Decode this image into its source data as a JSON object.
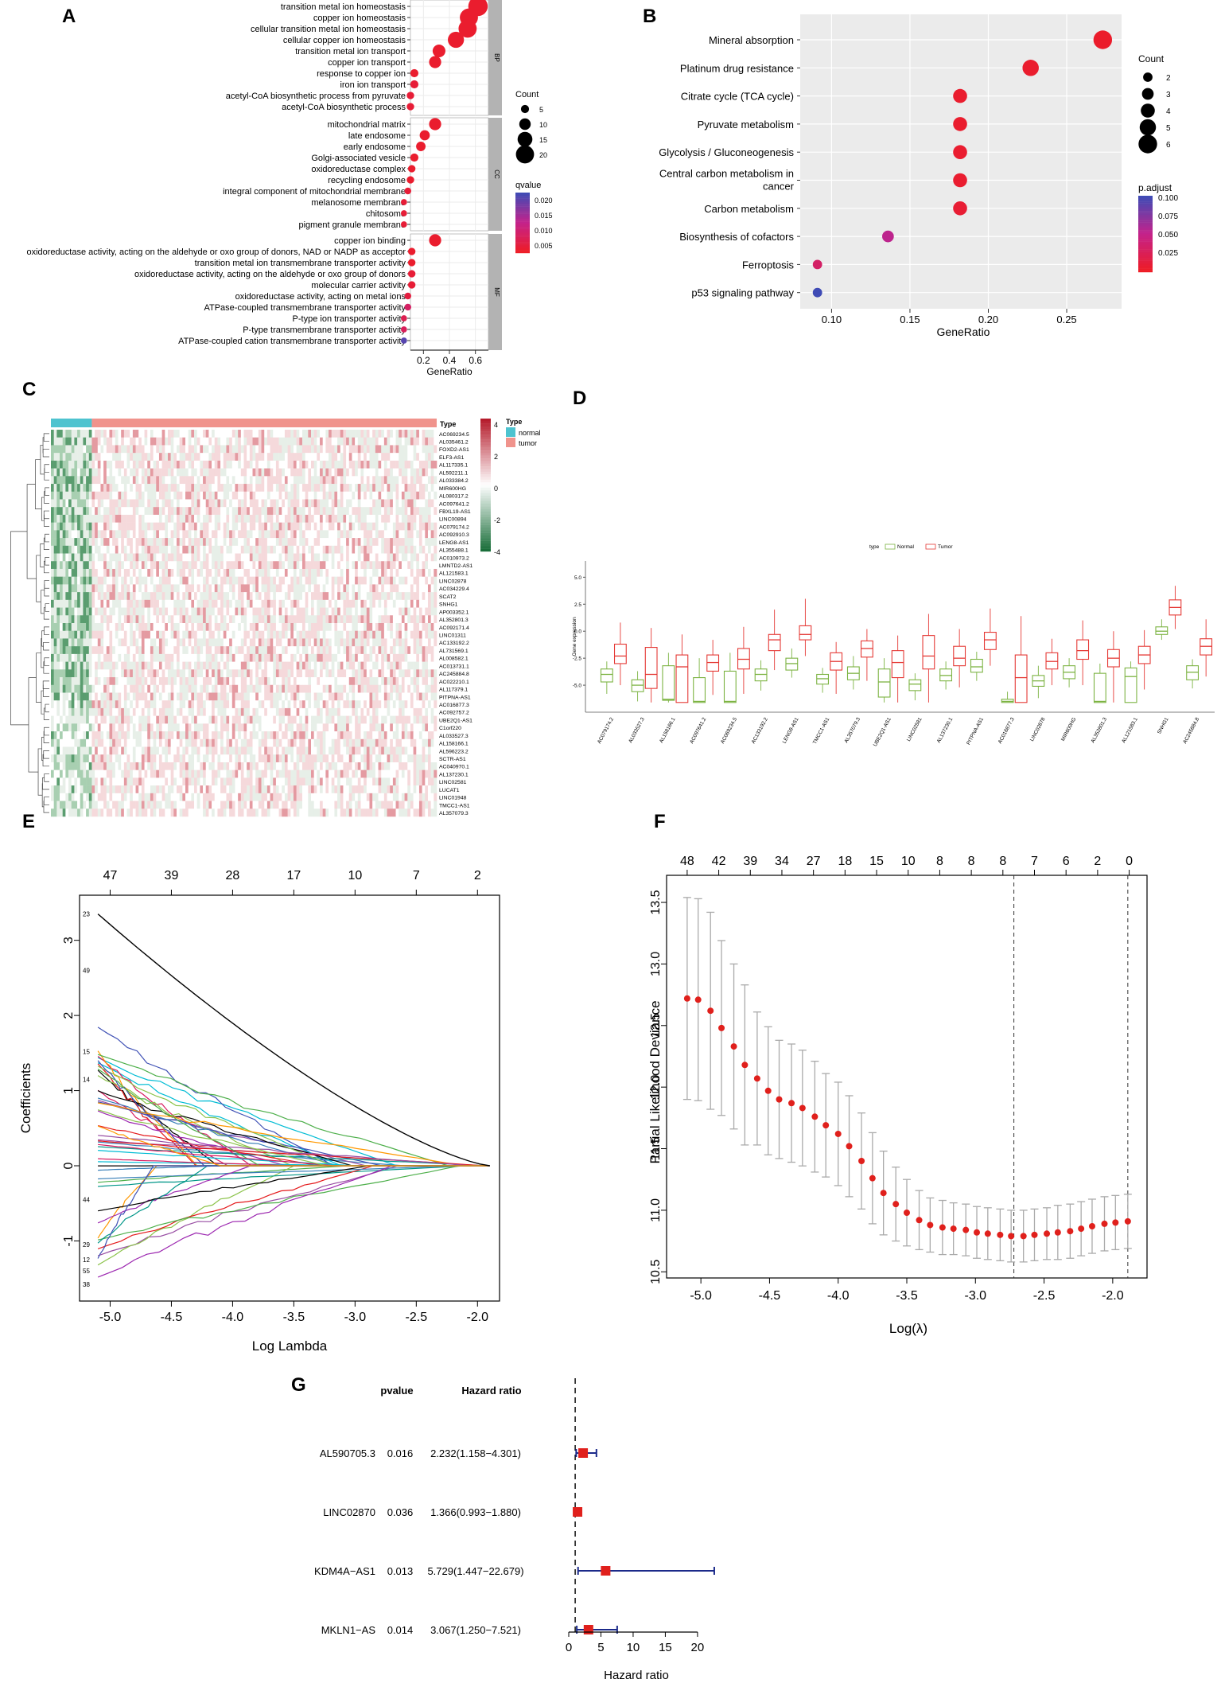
{
  "figure": {
    "panel_letters": [
      "A",
      "B",
      "C",
      "D",
      "E",
      "F",
      "G"
    ]
  },
  "chart_data": [
    {
      "id": "A",
      "type": "scatter",
      "title": "",
      "xlabel": "GeneRatio",
      "xticks": [
        "0.2",
        "0.4",
        "0.6"
      ],
      "xlim": [
        0.1,
        0.7
      ],
      "size_legend_title": "Count",
      "size_legend": [
        "5",
        "10",
        "15",
        "20"
      ],
      "color_legend_title": "qvalue",
      "color_legend": [
        "0.020",
        "0.015",
        "0.010",
        "0.005"
      ],
      "color_range": [
        0.001,
        0.024
      ],
      "groups": [
        {
          "name": "BP",
          "terms": [
            {
              "label": "transition metal ion homeostasis",
              "x": 0.62,
              "count": 22,
              "q": 0.002
            },
            {
              "label": "copper ion homeostasis",
              "x": 0.55,
              "count": 20,
              "q": 0.002
            },
            {
              "label": "cellular transition metal ion homeostasis",
              "x": 0.54,
              "count": 20,
              "q": 0.002
            },
            {
              "label": "cellular copper ion homeostasis",
              "x": 0.45,
              "count": 17,
              "q": 0.002
            },
            {
              "label": "transition metal ion transport",
              "x": 0.32,
              "count": 12,
              "q": 0.002
            },
            {
              "label": "copper ion transport",
              "x": 0.29,
              "count": 11,
              "q": 0.002
            },
            {
              "label": "response to copper ion",
              "x": 0.13,
              "count": 5,
              "q": 0.002
            },
            {
              "label": "iron ion transport",
              "x": 0.13,
              "count": 5,
              "q": 0.003
            },
            {
              "label": "acetyl-CoA biosynthetic process from pyruvate",
              "x": 0.1,
              "count": 4,
              "q": 0.003
            },
            {
              "label": "acetyl-CoA biosynthetic process",
              "x": 0.1,
              "count": 4,
              "q": 0.003
            }
          ]
        },
        {
          "name": "CC",
          "terms": [
            {
              "label": "mitochondrial matrix",
              "x": 0.29,
              "count": 11,
              "q": 0.002
            },
            {
              "label": "late endosome",
              "x": 0.21,
              "count": 8,
              "q": 0.002
            },
            {
              "label": "early endosome",
              "x": 0.18,
              "count": 7,
              "q": 0.002
            },
            {
              "label": "Golgi-associated vesicle",
              "x": 0.13,
              "count": 5,
              "q": 0.002
            },
            {
              "label": "oxidoreductase complex",
              "x": 0.11,
              "count": 4,
              "q": 0.002
            },
            {
              "label": "recycling endosome",
              "x": 0.1,
              "count": 4,
              "q": 0.002
            },
            {
              "label": "integral component of mitochondrial membrane",
              "x": 0.08,
              "count": 3,
              "q": 0.003
            },
            {
              "label": "melanosome membrane",
              "x": 0.05,
              "count": 2,
              "q": 0.003
            },
            {
              "label": "chitosome",
              "x": 0.05,
              "count": 2,
              "q": 0.003
            },
            {
              "label": "pigment granule membrane",
              "x": 0.05,
              "count": 2,
              "q": 0.003
            }
          ]
        },
        {
          "name": "MF",
          "terms": [
            {
              "label": "copper ion binding",
              "x": 0.29,
              "count": 11,
              "q": 0.002
            },
            {
              "label": "oxidoreductase activity, acting on the aldehyde or oxo group of donors, NAD or NADP as acceptor",
              "x": 0.11,
              "count": 4,
              "q": 0.002
            },
            {
              "label": "transition metal ion transmembrane transporter activity",
              "x": 0.11,
              "count": 4,
              "q": 0.002
            },
            {
              "label": "oxidoreductase activity, acting on the aldehyde or oxo group of donors",
              "x": 0.11,
              "count": 4,
              "q": 0.003
            },
            {
              "label": "molecular carrier activity",
              "x": 0.11,
              "count": 4,
              "q": 0.003
            },
            {
              "label": "oxidoreductase activity, acting on metal ions",
              "x": 0.08,
              "count": 3,
              "q": 0.004
            },
            {
              "label": "ATPase-coupled transmembrane transporter activity",
              "x": 0.08,
              "count": 3,
              "q": 0.008
            },
            {
              "label": "P-type ion transporter activity",
              "x": 0.05,
              "count": 2,
              "q": 0.006
            },
            {
              "label": "P-type transmembrane transporter activity",
              "x": 0.05,
              "count": 2,
              "q": 0.007
            },
            {
              "label": "ATPase-coupled cation transmembrane transporter activity",
              "x": 0.05,
              "count": 2,
              "q": 0.022
            }
          ]
        }
      ]
    },
    {
      "id": "B",
      "type": "scatter",
      "xlabel": "GeneRatio",
      "xticks": [
        "0.10",
        "0.15",
        "0.20",
        "0.25"
      ],
      "xlim": [
        0.08,
        0.285
      ],
      "size_legend_title": "Count",
      "size_legend": [
        "2",
        "3",
        "4",
        "5",
        "6"
      ],
      "color_legend_title": "p.adjust",
      "color_legend": [
        "0.100",
        "0.075",
        "0.050",
        "0.025"
      ],
      "color_range": [
        0.005,
        0.1
      ],
      "terms": [
        {
          "label": "Mineral absorption",
          "x": 0.273,
          "count": 6,
          "padj": 0.008
        },
        {
          "label": "Platinum drug resistance",
          "x": 0.227,
          "count": 5,
          "padj": 0.009
        },
        {
          "label": "Citrate cycle (TCA cycle)",
          "x": 0.182,
          "count": 4,
          "padj": 0.009
        },
        {
          "label": "Pyruvate metabolism",
          "x": 0.182,
          "count": 4,
          "padj": 0.009
        },
        {
          "label": "Glycolysis / Gluconeogenesis",
          "x": 0.182,
          "count": 4,
          "padj": 0.01
        },
        {
          "label": "Central carbon metabolism in cancer",
          "label_lines": [
            "Central carbon metabolism in",
            "cancer"
          ],
          "x": 0.182,
          "count": 4,
          "padj": 0.01
        },
        {
          "label": "Carbon metabolism",
          "x": 0.182,
          "count": 4,
          "padj": 0.012
        },
        {
          "label": "Biosynthesis of cofactors",
          "x": 0.136,
          "count": 3,
          "padj": 0.055
        },
        {
          "label": "Ferroptosis",
          "x": 0.091,
          "count": 2,
          "padj": 0.035
        },
        {
          "label": "p53 signaling pathway",
          "x": 0.091,
          "count": 2,
          "padj": 0.1
        }
      ]
    },
    {
      "id": "C",
      "type": "heatmap",
      "annotation_title": "Type",
      "annotation_legend_title": "Type",
      "annotation_groups": [
        {
          "name": "normal",
          "color": "#4ec3cf",
          "n_samples": 14
        },
        {
          "name": "tumor",
          "color": "#f0938c",
          "n_samples": 118
        }
      ],
      "color_scale_ticks": [
        "4",
        "2",
        "0",
        "-2",
        "-4"
      ],
      "scale_colors": [
        "#1a6e3a",
        "#ffffff",
        "#b51c2c"
      ],
      "genes": [
        "AC069234.5",
        "AL035461.2",
        "FOXD2-AS1",
        "ELF3-AS1",
        "AL117335.1",
        "AL592211.1",
        "AL033384.2",
        "MIR600HG",
        "AL080317.2",
        "AC097641.2",
        "FBXL19-AS1",
        "LINC00894",
        "AC079174.2",
        "AC092910.3",
        "LENG8-AS1",
        "AL355488.1",
        "AC010973.2",
        "LMNTD2-AS1",
        "AL121583.1",
        "LINC02878",
        "AC034229.4",
        "SCAT2",
        "SNHG1",
        "AP003352.1",
        "AL352801.3",
        "AC092171.4",
        "LINC01311",
        "AC133192.2",
        "AL731569.1",
        "AL008582.1",
        "AC013731.1",
        "AC245884.8",
        "AC022210.1",
        "AL117379.1",
        "PITPNA-AS1",
        "AC016877.3",
        "AC092757.2",
        "UBE2Q1-AS1",
        "C1orf220",
        "AL033527.3",
        "AL158166.1",
        "AL596223.2",
        "SCTR-AS1",
        "AC040970.1",
        "AL137230.1",
        "LINC02581",
        "LUCAT1",
        "LINC01948",
        "TMCC1-AS1",
        "AL357079.3"
      ]
    },
    {
      "id": "D",
      "type": "box",
      "legend_title": "type",
      "legend": [
        {
          "name": "Normal",
          "color": "#7cb342"
        },
        {
          "name": "Tumor",
          "color": "#e53935"
        }
      ],
      "ylabel": "Gene expression",
      "yticks": [
        "5.0",
        "2.5",
        "0.0",
        "-2.5",
        "-5.0"
      ],
      "ylim": [
        -7.5,
        6.5
      ],
      "categories": [
        "AC079174.2",
        "AL033527.3",
        "AL158166.1",
        "AC097641.2",
        "AC069234.5",
        "AC133192.2",
        "LENG8-AS1",
        "TMCC1-AS1",
        "AL357079.3",
        "UBE2Q1-AS1",
        "LINC02581",
        "AL137230.1",
        "PITPNA-AS1",
        "AC016877.3",
        "LINC02878",
        "MIR600HG",
        "AL352801.3",
        "AL121583.1",
        "SNHG1",
        "AC245884.8"
      ],
      "series": [
        {
          "name": "Normal",
          "q1": [
            -4.7,
            -5.6,
            -6.4,
            -6.6,
            -6.6,
            -4.6,
            -3.6,
            -4.9,
            -4.5,
            -6.1,
            -5.5,
            -4.6,
            -3.8,
            -6.6,
            -5.1,
            -4.4,
            -6.6,
            -6.6,
            -0.3,
            -4.5
          ],
          "med": [
            -4.0,
            -5.0,
            -6.3,
            -6.5,
            -6.5,
            -4.0,
            -3.0,
            -4.4,
            -3.9,
            -4.7,
            -4.9,
            -4.1,
            -3.3,
            -6.5,
            -4.6,
            -3.8,
            -6.5,
            -4.2,
            0.0,
            -3.8
          ],
          "q3": [
            -3.5,
            -4.5,
            -3.2,
            -4.3,
            -3.7,
            -3.5,
            -2.5,
            -4.0,
            -3.3,
            -3.5,
            -4.5,
            -3.5,
            -2.6,
            -6.3,
            -4.1,
            -3.2,
            -3.9,
            -3.4,
            0.4,
            -3.2
          ],
          "lo": [
            -5.8,
            -6.5,
            -6.6,
            -6.6,
            -6.6,
            -5.5,
            -4.3,
            -5.7,
            -5.4,
            -6.6,
            -6.4,
            -5.4,
            -4.6,
            -6.6,
            -6.2,
            -5.2,
            -6.6,
            -6.6,
            -0.8,
            -5.3
          ],
          "hi": [
            -2.8,
            -3.7,
            -2.0,
            -2.5,
            -2.0,
            -2.7,
            -1.6,
            -3.4,
            -2.3,
            -2.5,
            -3.9,
            -2.8,
            -1.9,
            -5.6,
            -3.2,
            -2.5,
            -3.0,
            -2.8,
            1.1,
            -2.6
          ]
        },
        {
          "name": "Tumor",
          "q1": [
            -3.0,
            -5.3,
            -6.6,
            -3.7,
            -3.5,
            -1.8,
            -0.8,
            -3.6,
            -2.4,
            -4.3,
            -3.5,
            -3.2,
            -1.7,
            -6.6,
            -3.5,
            -2.6,
            -3.3,
            -3.0,
            1.5,
            -2.2
          ],
          "med": [
            -2.3,
            -4.0,
            -3.3,
            -2.9,
            -2.6,
            -0.8,
            -0.3,
            -2.8,
            -1.6,
            -2.9,
            -2.3,
            -2.5,
            -0.8,
            -4.3,
            -2.8,
            -1.8,
            -2.5,
            -2.2,
            2.2,
            -1.4
          ],
          "q3": [
            -1.2,
            -1.5,
            -2.2,
            -2.2,
            -1.6,
            -0.3,
            0.5,
            -2.0,
            -0.9,
            -1.8,
            -0.4,
            -1.4,
            -0.1,
            -2.2,
            -2.0,
            -0.8,
            -1.7,
            -1.4,
            2.9,
            -0.7
          ],
          "lo": [
            -5.0,
            -6.6,
            -6.6,
            -5.9,
            -5.8,
            -3.6,
            -2.3,
            -5.8,
            -4.6,
            -6.6,
            -6.6,
            -5.2,
            -3.2,
            -6.6,
            -5.0,
            -5.0,
            -6.6,
            -5.4,
            0.2,
            -4.2
          ],
          "hi": [
            0.8,
            0.3,
            -0.3,
            -0.8,
            0.4,
            2.0,
            3.0,
            -1.0,
            0.2,
            -0.4,
            1.6,
            0.2,
            2.1,
            1.4,
            -0.7,
            1.0,
            0.0,
            0.1,
            4.2,
            1.1
          ]
        }
      ]
    },
    {
      "id": "E",
      "type": "line",
      "xlabel": "Log Lambda",
      "ylabel": "Coefficients",
      "xticks": [
        "-5.0",
        "-4.5",
        "-4.0",
        "-3.5",
        "-3.0",
        "-2.5",
        "-2.0"
      ],
      "yticks": [
        "3",
        "2",
        "1",
        "0",
        "-1"
      ],
      "top_ticks": [
        "47",
        "39",
        "28",
        "17",
        "10",
        "7",
        "2"
      ],
      "xlim": [
        -5.25,
        -1.82
      ],
      "ylim": [
        -1.8,
        3.6
      ],
      "n_paths": 46,
      "path_labels": [
        "23",
        "49",
        "15",
        "14",
        "44",
        "29",
        "12",
        "55",
        "38"
      ],
      "highlight": {
        "start": 3.35,
        "end_lambda": -1.9
      }
    },
    {
      "id": "F",
      "type": "scatter",
      "xlabel": "Log(λ)",
      "ylabel": "Partial Likelihood Deviance",
      "xticks": [
        "-5.0",
        "-4.5",
        "-4.0",
        "-3.5",
        "-3.0",
        "-2.5",
        "-2.0"
      ],
      "yticks": [
        "13.5",
        "13.0",
        "12.5",
        "12.0",
        "11.5",
        "11.0",
        "10.5"
      ],
      "top_ticks": [
        "48",
        "42",
        "39",
        "34",
        "27",
        "18",
        "15",
        "10",
        "8",
        "8",
        "8",
        "7",
        "6",
        "2",
        "0"
      ],
      "xlim": [
        -5.25,
        -1.75
      ],
      "ylim": [
        10.45,
        13.72
      ],
      "x": [
        -5.1,
        -5.02,
        -4.93,
        -4.85,
        -4.76,
        -4.68,
        -4.59,
        -4.51,
        -4.43,
        -4.34,
        -4.26,
        -4.17,
        -4.09,
        -4.0,
        -3.92,
        -3.83,
        -3.75,
        -3.67,
        -3.58,
        -3.5,
        -3.41,
        -3.33,
        -3.24,
        -3.16,
        -3.07,
        -2.99,
        -2.91,
        -2.82,
        -2.74,
        -2.65,
        -2.57,
        -2.48,
        -2.4,
        -2.31,
        -2.23,
        -2.15,
        -2.06,
        -1.98,
        -1.89
      ],
      "y": [
        12.72,
        12.71,
        12.62,
        12.48,
        12.33,
        12.18,
        12.07,
        11.97,
        11.9,
        11.87,
        11.83,
        11.76,
        11.69,
        11.62,
        11.52,
        11.4,
        11.26,
        11.14,
        11.05,
        10.98,
        10.92,
        10.88,
        10.86,
        10.85,
        10.84,
        10.82,
        10.81,
        10.8,
        10.79,
        10.79,
        10.8,
        10.81,
        10.82,
        10.83,
        10.85,
        10.87,
        10.89,
        10.9,
        10.91
      ],
      "err": [
        0.82,
        0.82,
        0.8,
        0.71,
        0.67,
        0.65,
        0.54,
        0.52,
        0.48,
        0.48,
        0.47,
        0.45,
        0.42,
        0.42,
        0.41,
        0.39,
        0.37,
        0.34,
        0.3,
        0.27,
        0.24,
        0.22,
        0.22,
        0.21,
        0.21,
        0.21,
        0.21,
        0.21,
        0.21,
        0.21,
        0.21,
        0.21,
        0.22,
        0.22,
        0.22,
        0.22,
        0.22,
        0.22,
        0.22
      ],
      "vlines": [
        -2.72,
        -1.89
      ]
    },
    {
      "id": "G",
      "type": "table",
      "headers": {
        "pvalue": "pvalue",
        "hr": "Hazard ratio"
      },
      "xlabel": "Hazard ratio",
      "xticks": [
        "0",
        "5",
        "10",
        "15",
        "20"
      ],
      "xlim": [
        0,
        21
      ],
      "ref_line": 1,
      "rows": [
        {
          "gene": "AL590705.3",
          "pvalue": "0.016",
          "hr_text": "2.232(1.158−4.301)",
          "hr": 2.232,
          "lo": 1.158,
          "hi": 4.301
        },
        {
          "gene": "LINC02870",
          "pvalue": "0.036",
          "hr_text": "1.366(0.993−1.880)",
          "hr": 1.366,
          "lo": 0.993,
          "hi": 1.88
        },
        {
          "gene": "KDM4A−AS1",
          "pvalue": "0.013",
          "hr_text": "5.729(1.447−22.679)",
          "hr": 5.729,
          "lo": 1.447,
          "hi": 22.679
        },
        {
          "gene": "MKLN1−AS",
          "pvalue": "0.014",
          "hr_text": "3.067(1.250−7.521)",
          "hr": 3.067,
          "lo": 1.25,
          "hi": 7.521
        }
      ]
    }
  ]
}
